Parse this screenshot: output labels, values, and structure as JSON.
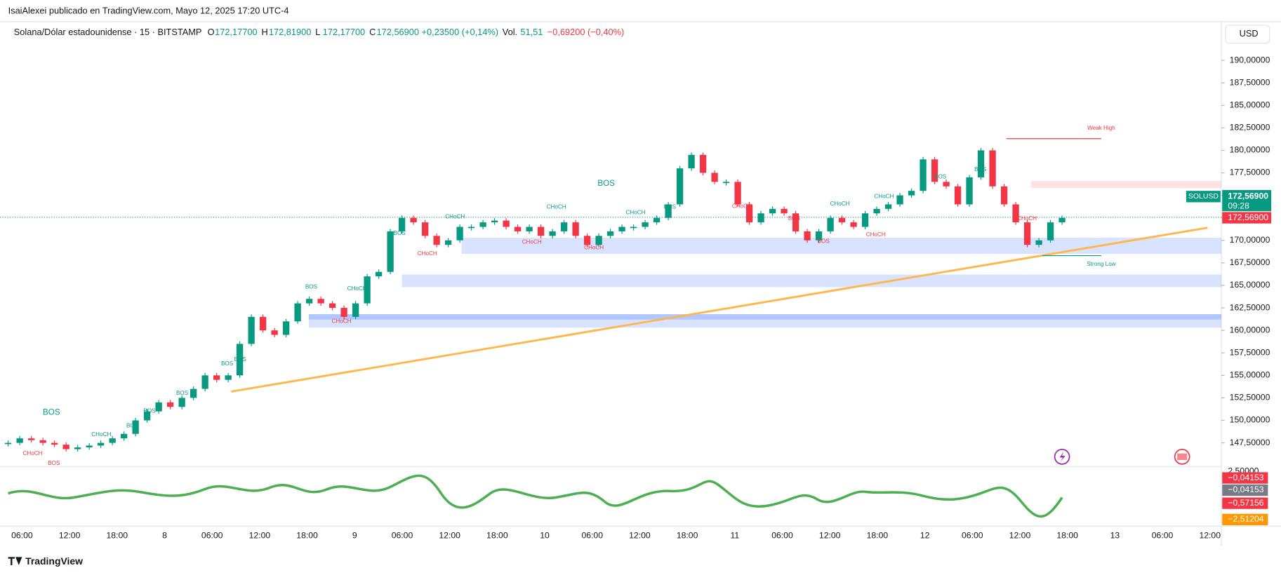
{
  "page": {
    "published_by": "IsaiAlexei publicado en TradingView.com, Mayo 12, 2025 17:20 UTC-4",
    "symbol": "Solana/Dólar estadounidense · 15 · BITSTAMP",
    "ohlc": [
      {
        "label": "O",
        "value": "172,17700"
      },
      {
        "label": "H",
        "value": "172,81900"
      },
      {
        "label": "L",
        "value": "172,17700"
      },
      {
        "label": "C",
        "value": "172,56900"
      }
    ],
    "change": "+0,23500 (+0,14%)",
    "volume_label": "Vol.",
    "volume": "51,51",
    "volume_change": "−0,69200 (−0,40%)",
    "currency": "USD",
    "brand": "TradingView",
    "chart_data": {
      "type": "candlestick",
      "ylim": [
        146.25,
        192.5
      ],
      "yticks": [
        {
          "value": 190,
          "label": "190,00000"
        },
        {
          "value": 187.5,
          "label": "187,50000"
        },
        {
          "value": 185,
          "label": "185,00000"
        },
        {
          "value": 182.5,
          "label": "182,50000"
        },
        {
          "value": 180,
          "label": "180,00000"
        },
        {
          "value": 177.5,
          "label": "177,50000"
        },
        {
          "value": 175,
          "label": "175,00000"
        },
        {
          "value": 172.5,
          "label": "172,50000"
        },
        {
          "value": 170,
          "label": "170,00000"
        },
        {
          "value": 167.5,
          "label": "167,50000"
        },
        {
          "value": 165,
          "label": "165,00000"
        },
        {
          "value": 162.5,
          "label": "162,50000"
        },
        {
          "value": 160,
          "label": "160,00000"
        },
        {
          "value": 157.5,
          "label": "157,50000"
        },
        {
          "value": 155,
          "label": "155,00000"
        },
        {
          "value": 152.5,
          "label": "152,50000"
        },
        {
          "value": 150,
          "label": "150,00000"
        },
        {
          "value": 147.5,
          "label": "147,50000"
        }
      ],
      "time_labels": [
        "06:00",
        "12:00",
        "18:00",
        "8",
        "06:00",
        "12:00",
        "18:00",
        "9",
        "06:00",
        "12:00",
        "18:00",
        "10",
        "06:00",
        "12:00",
        "18:00",
        "11",
        "06:00",
        "12:00",
        "18:00",
        "12",
        "06:00",
        "12:00",
        "18:00",
        "13",
        "06:00",
        "12:00"
      ],
      "closes": [
        147.5,
        148,
        147.8,
        147.5,
        147.3,
        146.8,
        147,
        147.2,
        147.5,
        148,
        148.5,
        150,
        151,
        152,
        151.5,
        152.5,
        153.5,
        155,
        154.5,
        155,
        158.5,
        161.5,
        160,
        159.5,
        161,
        163,
        163.5,
        163,
        162.5,
        161.5,
        163,
        166,
        166.5,
        171,
        172.5,
        172,
        170.5,
        169.5,
        170,
        171.5,
        171.5,
        172,
        172.2,
        171.5,
        171,
        171.5,
        170.5,
        171,
        172,
        170.5,
        169.5,
        170.5,
        171,
        171.5,
        171.5,
        172,
        172.5,
        174,
        178,
        179.5,
        177.5,
        176.5,
        176.5,
        174,
        172,
        173,
        173.5,
        173,
        171,
        170,
        171,
        172.5,
        172,
        171.5,
        173,
        173.5,
        174,
        175,
        175.5,
        179,
        176.5,
        176,
        174,
        177,
        180,
        176,
        174,
        172,
        169.5,
        170,
        172,
        172.5
      ],
      "colors": {
        "up": "#089981",
        "down": "#f23645"
      },
      "zones": [
        [
          168.5,
          170.3
        ],
        [
          164.8,
          166.2
        ],
        [
          160.3,
          161.8
        ],
        [
          161.2,
          161.8
        ]
      ],
      "supply_zone": [
        175.8,
        176.6
      ],
      "trendline": [
        153.2,
        171.4
      ],
      "weak_high": 181.3,
      "strong_low": 168.3,
      "last_price": 172.569,
      "last_price_label": "172,56900",
      "ticker": "SOLUSD",
      "countdown": "09:28",
      "annotations": [
        "BOS",
        "CHoCH",
        "BOS",
        "CHoCH",
        "BOS",
        "BOS",
        "BOS",
        "BOS",
        "BOS",
        "BOS",
        "CHoCH",
        "CHoCH",
        "BOS",
        "CHoCH",
        "CHoCH",
        "CHoCH",
        "CHoCH",
        "CHoCH",
        "CHoCH",
        "BOS",
        "BOS",
        "CHoCH",
        "BOS",
        "CHoCH",
        "BOS",
        "CHoCH",
        "CHoCH",
        "BOS",
        "BOS",
        "CHoCH",
        "Weak High",
        "Strong Low"
      ]
    },
    "oscillator": {
      "labels": [
        "2,50000",
        "−0,04153",
        "−0,04153",
        "−0,57156",
        "−2,51204"
      ]
    }
  }
}
